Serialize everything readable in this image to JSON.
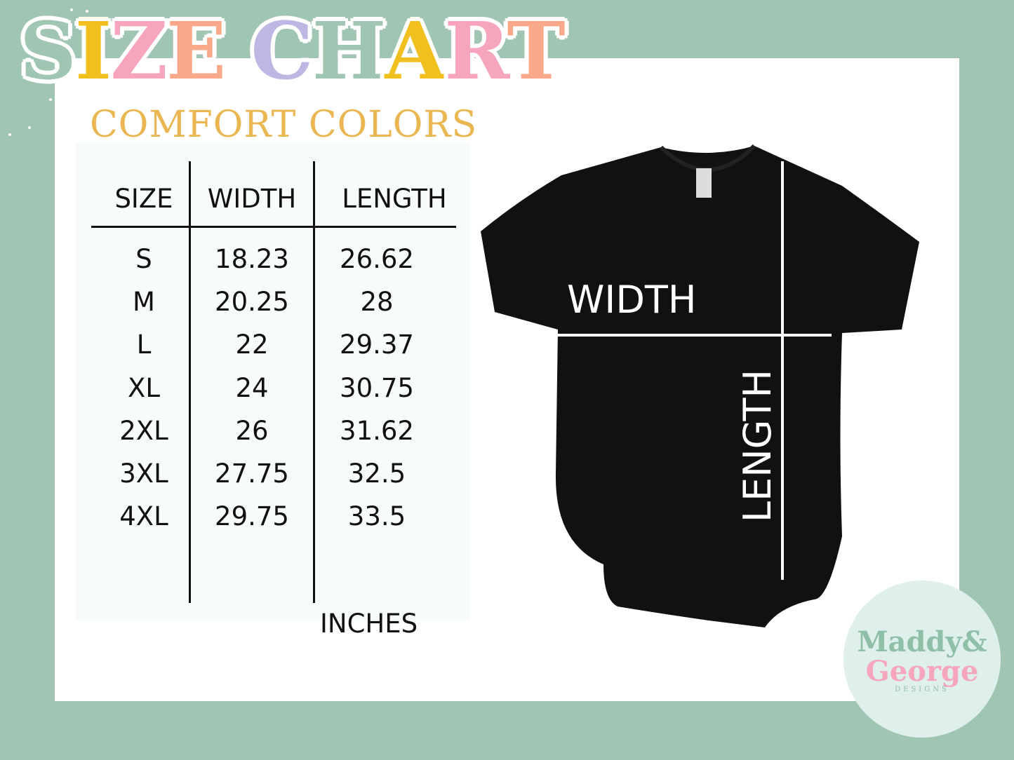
{
  "title": {
    "letters": [
      "S",
      "I",
      "Z",
      "E",
      " ",
      "C",
      "H",
      "A",
      "R",
      "T"
    ],
    "colors": [
      "#a0c5b3",
      "#f2c01e",
      "#f7a5bd",
      "#f9a989",
      "",
      "#bcb8e3",
      "#a0c5b3",
      "#f2c01e",
      "#f7a5bd",
      "#f9a989"
    ]
  },
  "subtitle": "COMFORT COLORS",
  "table": {
    "headers": [
      "SIZE",
      "WIDTH",
      "LENGTH"
    ],
    "rows": [
      [
        "S",
        "18.23",
        "26.62"
      ],
      [
        "M",
        "20.25",
        "28"
      ],
      [
        "L",
        "22",
        "29.37"
      ],
      [
        "XL",
        "24",
        "30.75"
      ],
      [
        "2XL",
        "26",
        "31.62"
      ],
      [
        "3XL",
        "27.75",
        "32.5"
      ],
      [
        "4XL",
        "29.75",
        "33.5"
      ]
    ],
    "unit": "INCHES"
  },
  "diagram": {
    "width_label": "WIDTH",
    "length_label": "LENGTH",
    "shirt_color": "#111111"
  },
  "logo": {
    "line1": "Maddy&",
    "line2": "George",
    "line3": "DESIGNS"
  },
  "colors": {
    "background": "#a0c5b3",
    "accent": "#e9b651"
  }
}
